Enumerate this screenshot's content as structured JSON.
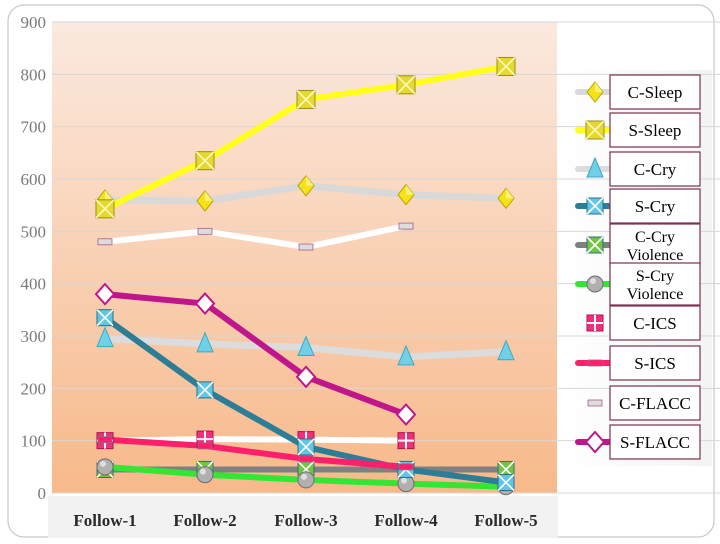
{
  "chart_data": {
    "type": "line",
    "categories": [
      "Follow-1",
      "Follow-2",
      "Follow-3",
      "Follow-4",
      "Follow-5"
    ],
    "ylim": [
      0,
      900
    ],
    "yticks": [
      0,
      100,
      200,
      300,
      400,
      500,
      600,
      700,
      800,
      900
    ],
    "grid": true,
    "legend_position": "right",
    "series": [
      {
        "name": "C-Sleep",
        "values": [
          560,
          558,
          587,
          570,
          563
        ],
        "color": "#d9d9d9",
        "marker": "diamond",
        "marker_color": "#f5e218"
      },
      {
        "name": "S-Sleep",
        "values": [
          543,
          635,
          752,
          780,
          815
        ],
        "color": "#ffff1a",
        "marker": "square",
        "marker_color": "#e6d832"
      },
      {
        "name": "C-Cry",
        "values": [
          295,
          285,
          278,
          260,
          270
        ],
        "color": "#dcdcdc",
        "marker": "triangle",
        "marker_color": "#70d0e8"
      },
      {
        "name": "S-Cry",
        "values": [
          335,
          197,
          88,
          45,
          20
        ],
        "color": "#2e7d96",
        "marker": "square-x",
        "marker_color": "#5fc6e6"
      },
      {
        "name": "C-Cry Violence",
        "values": [
          45,
          45,
          45,
          45,
          45
        ],
        "color": "#808080",
        "marker": "square-x",
        "marker_color": "#72c442"
      },
      {
        "name": "S-Cry Violence",
        "values": [
          50,
          35,
          25,
          18,
          12
        ],
        "color": "#33e633",
        "marker": "circle",
        "marker_color": "#b0b0b0"
      },
      {
        "name": "C-ICS",
        "values": [
          100,
          103,
          102,
          100,
          null
        ],
        "color": "#ffffff",
        "marker": "cross-square",
        "marker_color": "#f0307a"
      },
      {
        "name": "S-ICS",
        "values": [
          102,
          90,
          65,
          50,
          null
        ],
        "color": "#ff1f6a",
        "marker": "dash",
        "marker_color": "#ff1f6a"
      },
      {
        "name": "C-FLACC",
        "values": [
          480,
          500,
          470,
          510,
          null
        ],
        "color": "#ffffff",
        "marker": "dash",
        "marker_color": "#dddddd"
      },
      {
        "name": "S-FLACC",
        "values": [
          380,
          362,
          222,
          150,
          null
        ],
        "color": "#c0168c",
        "marker": "diamond-open",
        "marker_color": "#c0168c"
      }
    ]
  }
}
